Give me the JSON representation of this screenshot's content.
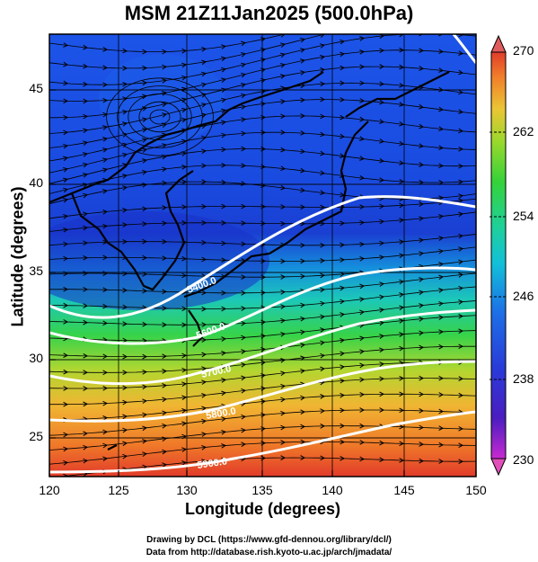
{
  "title": "MSM 21Z11Jan2025 (500.0hPa)",
  "axes": {
    "xlabel": "Longitude (degrees)",
    "ylabel": "Latitude  (degrees)",
    "xticks": [
      "120",
      "125",
      "130",
      "135",
      "140",
      "145",
      "150"
    ],
    "yticks": [
      "45",
      "40",
      "35",
      "30",
      "25"
    ]
  },
  "colorbar": {
    "labels": [
      "270",
      "262",
      "254",
      "246",
      "238",
      "230"
    ],
    "colors": [
      "#e0508a",
      "#c72ad0",
      "#4a20c8",
      "#1d55e0",
      "#12b8d8",
      "#1fd09a",
      "#34d23a",
      "#9ad82c",
      "#ebc534",
      "#f07e2a",
      "#e03d2a",
      "#e05b5b"
    ]
  },
  "contour_labels": [
    "5400.0",
    "5600.0",
    "5700.0",
    "5800.0",
    "5900.0"
  ],
  "credits": [
    "Drawing by DCL (https://www.gfd-dennou.org/library/dcl/)",
    "Data from http://database.rish.kyoto-u.ac.jp/arch/jmadata/"
  ]
}
